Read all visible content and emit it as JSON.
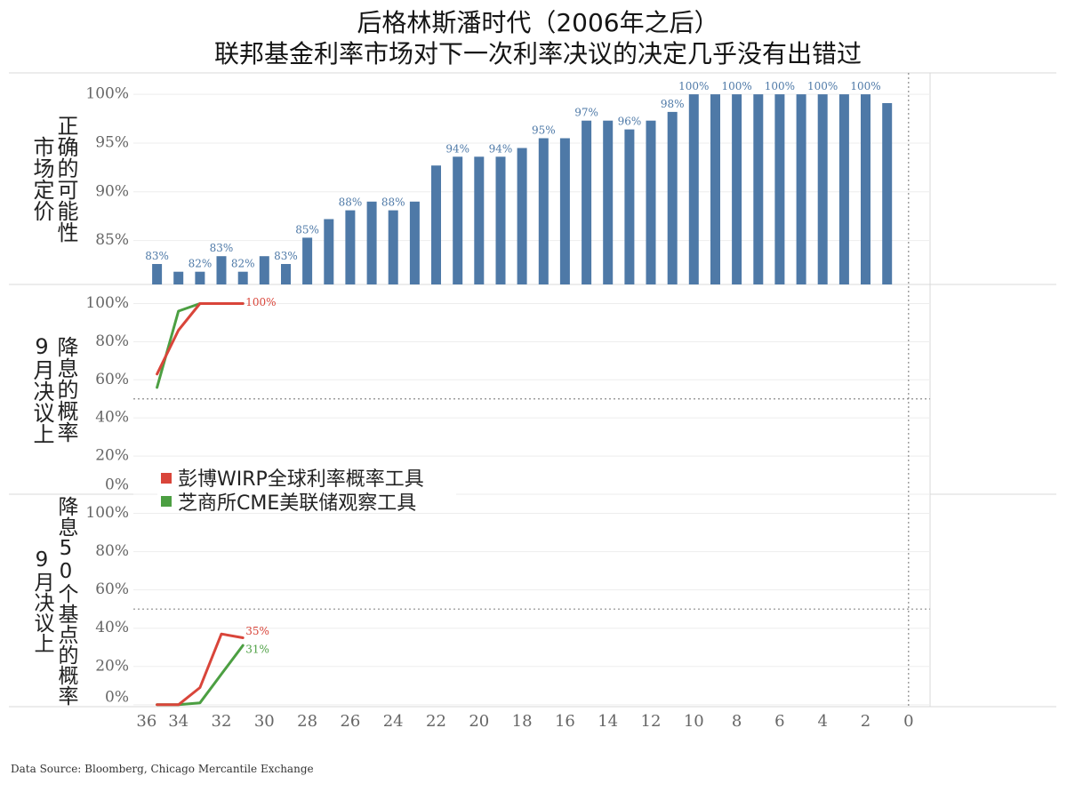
{
  "title": {
    "line1": "后格林斯潘时代（2006年之后）",
    "line2": "联邦基金利率市场对下一次利率决议的决定几乎没有出错过"
  },
  "source": "Data Source: Bloomberg, Chicago Mercantile Exchange",
  "colors": {
    "bar": "#4e79a7",
    "bar_label": "#4e79a7",
    "grid": "#ededed",
    "separator": "#d9d9d9",
    "reference": "#8a8a8a",
    "tick_label": "#666666"
  },
  "x_axis": {
    "ticks": [
      36,
      34,
      32,
      30,
      28,
      26,
      24,
      22,
      20,
      18,
      16,
      14,
      12,
      10,
      8,
      6,
      4,
      2,
      0
    ],
    "xlim": [
      36.1,
      -1.0
    ],
    "reference_line": 0
  },
  "chart_data": [
    {
      "type": "bar",
      "ylabel": [
        "市场定价",
        "正确的可能性"
      ],
      "x": [
        35,
        34,
        33,
        32,
        31,
        30,
        29,
        28,
        27,
        26,
        25,
        24,
        23,
        22,
        21,
        20,
        19,
        18,
        17,
        16,
        15,
        14,
        13,
        12,
        11,
        10,
        9,
        8,
        7,
        6,
        5,
        4,
        3,
        2,
        1
      ],
      "values": [
        82.6,
        81.8,
        81.8,
        83.4,
        81.8,
        83.4,
        82.6,
        85.3,
        87.2,
        88.1,
        89.0,
        88.1,
        89.0,
        92.7,
        93.6,
        93.6,
        93.6,
        94.5,
        95.5,
        95.5,
        97.3,
        97.3,
        96.4,
        97.3,
        98.2,
        100,
        100,
        100,
        100,
        100,
        100,
        100,
        100,
        100,
        99.1
      ],
      "data_labels": [
        "83%",
        null,
        "82%",
        "83%",
        "82%",
        null,
        "83%",
        "85%",
        null,
        "88%",
        null,
        "88%",
        null,
        null,
        "94%",
        null,
        "94%",
        null,
        "95%",
        null,
        "97%",
        null,
        "96%",
        null,
        "98%",
        "100%",
        null,
        "100%",
        null,
        "100%",
        null,
        "100%",
        null,
        "100%",
        null
      ],
      "yticks": [
        85,
        90,
        95,
        100
      ],
      "ytick_labels": [
        "85%",
        "90%",
        "95%",
        "100%"
      ],
      "ylim": [
        80.5,
        102.2
      ],
      "grid": true
    },
    {
      "type": "line",
      "ylabel": [
        "9月决议上",
        "降息的概率"
      ],
      "x": [
        35,
        34,
        33,
        32,
        31
      ],
      "series": [
        {
          "name": "彭博WIRP全球利率概率工具",
          "color": "#d9453a",
          "values": [
            63,
            86,
            100,
            100,
            100
          ],
          "end_label": "100%"
        },
        {
          "name": "芝商所CME美联储观察工具",
          "color": "#4c9f42",
          "values": [
            56,
            96,
            100,
            100,
            100
          ],
          "end_label": null
        }
      ],
      "yticks": [
        0,
        20,
        40,
        60,
        80,
        100
      ],
      "ytick_labels": [
        "0%",
        "20%",
        "40%",
        "60%",
        "80%",
        "100%"
      ],
      "ylim": [
        0,
        110
      ],
      "reference_line": 50,
      "legend_position": "bottom-left",
      "grid": true
    },
    {
      "type": "line",
      "ylabel": [
        "9月决议上",
        "降息50个基点的概率"
      ],
      "x": [
        35,
        34,
        33,
        32,
        31
      ],
      "series": [
        {
          "name": "彭博WIRP全球利率概率工具",
          "color": "#d9453a",
          "values": [
            0,
            0,
            9,
            37,
            35
          ],
          "end_label": "35%"
        },
        {
          "name": "芝商所CME美联储观察工具",
          "color": "#4c9f42",
          "values": [
            0,
            0,
            1,
            16,
            31
          ],
          "end_label": "31%"
        }
      ],
      "yticks": [
        0,
        20,
        40,
        60,
        80,
        100
      ],
      "ytick_labels": [
        "0%",
        "20%",
        "40%",
        "60%",
        "80%",
        "100%"
      ],
      "ylim": [
        -1,
        110
      ],
      "reference_line": 50,
      "grid": true
    }
  ]
}
